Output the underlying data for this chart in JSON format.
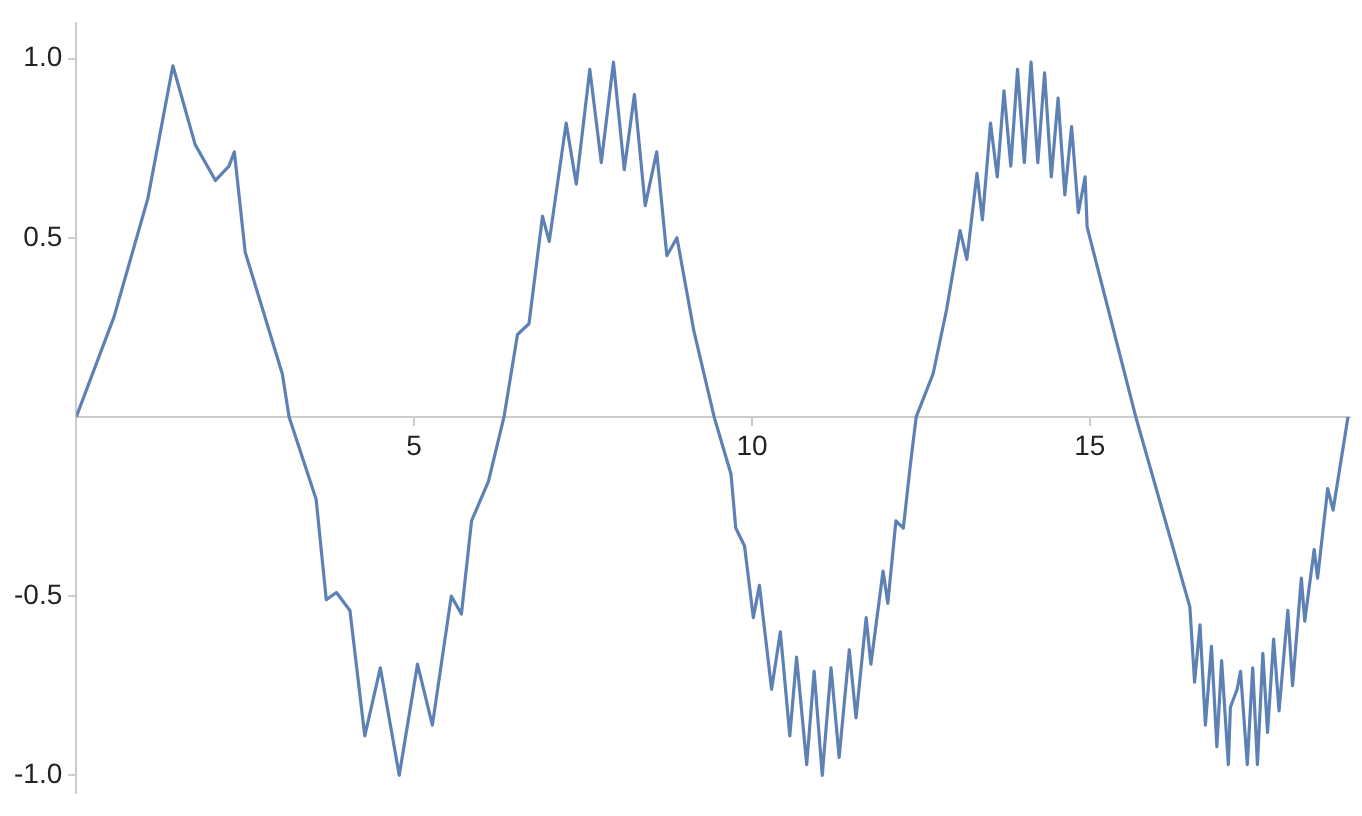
{
  "chart_data": {
    "type": "line",
    "xlim": [
      0,
      18.85
    ],
    "ylim": [
      -1.05,
      1.1
    ],
    "xticks": [
      5,
      10,
      15
    ],
    "yticks": [
      {
        "value": -1,
        "label": "-1.0"
      },
      {
        "value": -0.5,
        "label": "-0.5"
      },
      {
        "value": 0.5,
        "label": "0.5"
      },
      {
        "value": 1,
        "label": "1.0"
      }
    ],
    "grid": false,
    "series": [
      {
        "color": "#5e81b5",
        "x": [
          0,
          0.56,
          1.06,
          1.43,
          1.76,
          2.06,
          2.26,
          2.34,
          2.5,
          3.05,
          3.15,
          3.55,
          3.7,
          3.85,
          4.05,
          4.27,
          4.5,
          4.78,
          5.05,
          5.27,
          5.55,
          5.7,
          5.85,
          6.1,
          6.33,
          6.53,
          6.7,
          6.9,
          7.0,
          7.25,
          7.4,
          7.6,
          7.77,
          7.95,
          8.11,
          8.26,
          8.42,
          8.59,
          8.74,
          8.89,
          9.14,
          9.44,
          9.69,
          9.76,
          9.89,
          10.02,
          10.11,
          10.29,
          10.42,
          10.56,
          10.66,
          10.81,
          10.92,
          11.04,
          11.17,
          11.29,
          11.44,
          11.54,
          11.69,
          11.76,
          11.94,
          12.01,
          12.13,
          12.24,
          12.34,
          12.43,
          12.68,
          12.88,
          13.08,
          13.18,
          13.33,
          13.41,
          13.53,
          13.63,
          13.73,
          13.83,
          13.93,
          14.03,
          14.13,
          14.23,
          14.33,
          14.43,
          14.53,
          14.63,
          14.73,
          14.83,
          14.93,
          14.96,
          15.68,
          16.48,
          16.55,
          16.63,
          16.71,
          16.8,
          16.88,
          16.95,
          17.05,
          17.08,
          17.18,
          17.23,
          17.33,
          17.41,
          17.48,
          17.56,
          17.63,
          17.72,
          17.8,
          17.93,
          18.0,
          18.13,
          18.18,
          18.32,
          18.37,
          18.52,
          18.6,
          18.82
        ],
        "values": [
          0,
          0.28,
          0.61,
          0.98,
          0.76,
          0.66,
          0.7,
          0.74,
          0.46,
          0.12,
          0,
          -0.23,
          -0.51,
          -0.49,
          -0.54,
          -0.89,
          -0.7,
          -1.0,
          -0.69,
          -0.86,
          -0.5,
          -0.55,
          -0.29,
          -0.18,
          0,
          0.23,
          0.26,
          0.56,
          0.49,
          0.82,
          0.65,
          0.97,
          0.71,
          0.99,
          0.69,
          0.9,
          0.59,
          0.74,
          0.45,
          0.5,
          0.24,
          0,
          -0.16,
          -0.31,
          -0.36,
          -0.56,
          -0.47,
          -0.76,
          -0.6,
          -0.89,
          -0.67,
          -0.97,
          -0.71,
          -1.0,
          -0.7,
          -0.95,
          -0.65,
          -0.84,
          -0.56,
          -0.69,
          -0.43,
          -0.52,
          -0.29,
          -0.31,
          -0.14,
          0,
          0.12,
          0.3,
          0.52,
          0.44,
          0.68,
          0.55,
          0.82,
          0.67,
          0.91,
          0.7,
          0.97,
          0.71,
          0.99,
          0.71,
          0.96,
          0.67,
          0.89,
          0.62,
          0.81,
          0.57,
          0.67,
          0.53,
          0,
          -0.53,
          -0.74,
          -0.58,
          -0.86,
          -0.64,
          -0.92,
          -0.68,
          -0.97,
          -0.81,
          -0.76,
          -0.71,
          -0.97,
          -0.7,
          -0.97,
          -0.66,
          -0.88,
          -0.62,
          -0.82,
          -0.54,
          -0.75,
          -0.45,
          -0.57,
          -0.37,
          -0.45,
          -0.2,
          -0.26,
          0
        ]
      }
    ]
  }
}
